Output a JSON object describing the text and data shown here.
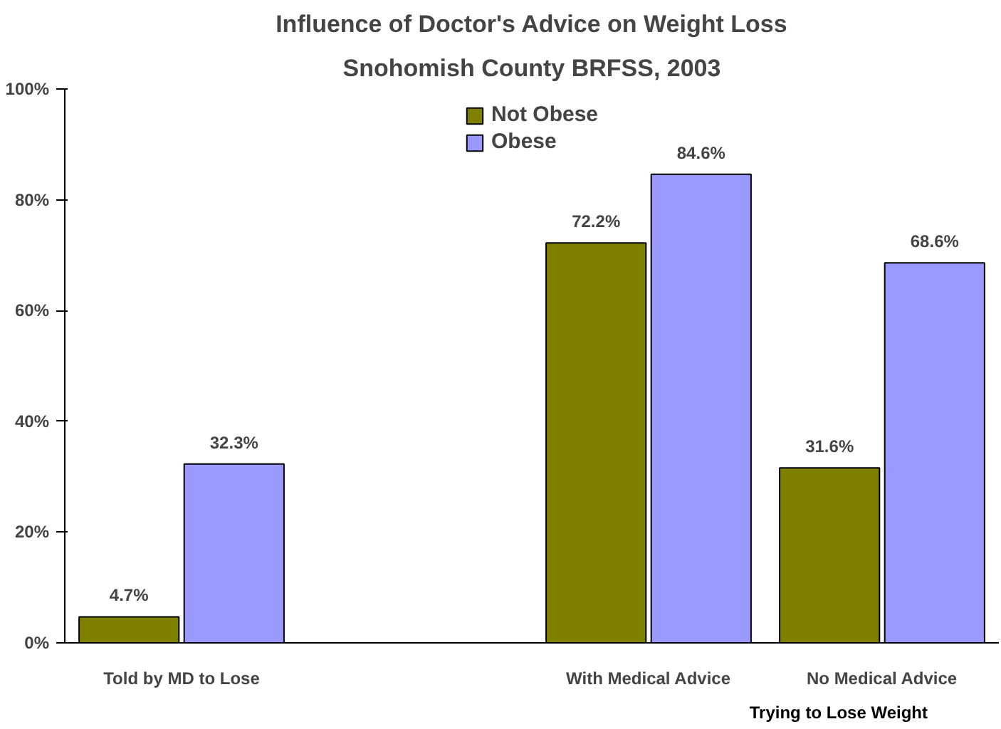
{
  "chart_data": {
    "type": "bar",
    "title": "Influence of Doctor's Advice on Weight Loss",
    "subtitle": "Snohomish County BRFSS, 2003",
    "categories": [
      "Told by MD to Lose",
      null,
      "With Medical Advice",
      "No Medical Advice"
    ],
    "series": [
      {
        "name": "Not Obese",
        "color": "#808000",
        "values": [
          4.7,
          null,
          72.2,
          31.6
        ],
        "value_labels": [
          "4.7%",
          null,
          "72.2%",
          "31.6%"
        ]
      },
      {
        "name": "Obese",
        "color": "#9999ff",
        "values": [
          32.3,
          null,
          84.6,
          68.6
        ],
        "value_labels": [
          "32.3%",
          null,
          "84.6%",
          "68.6%"
        ]
      }
    ],
    "ylim": [
      0,
      100
    ],
    "yticks": [
      {
        "value": 0,
        "label": "0%"
      },
      {
        "value": 20,
        "label": "20%"
      },
      {
        "value": 40,
        "label": "40%"
      },
      {
        "value": 60,
        "label": "60%"
      },
      {
        "value": 80,
        "label": "80%"
      },
      {
        "value": 100,
        "label": "100%"
      }
    ],
    "annotations": [
      "Trying to Lose Weight"
    ],
    "grid": false,
    "legend": "top"
  }
}
